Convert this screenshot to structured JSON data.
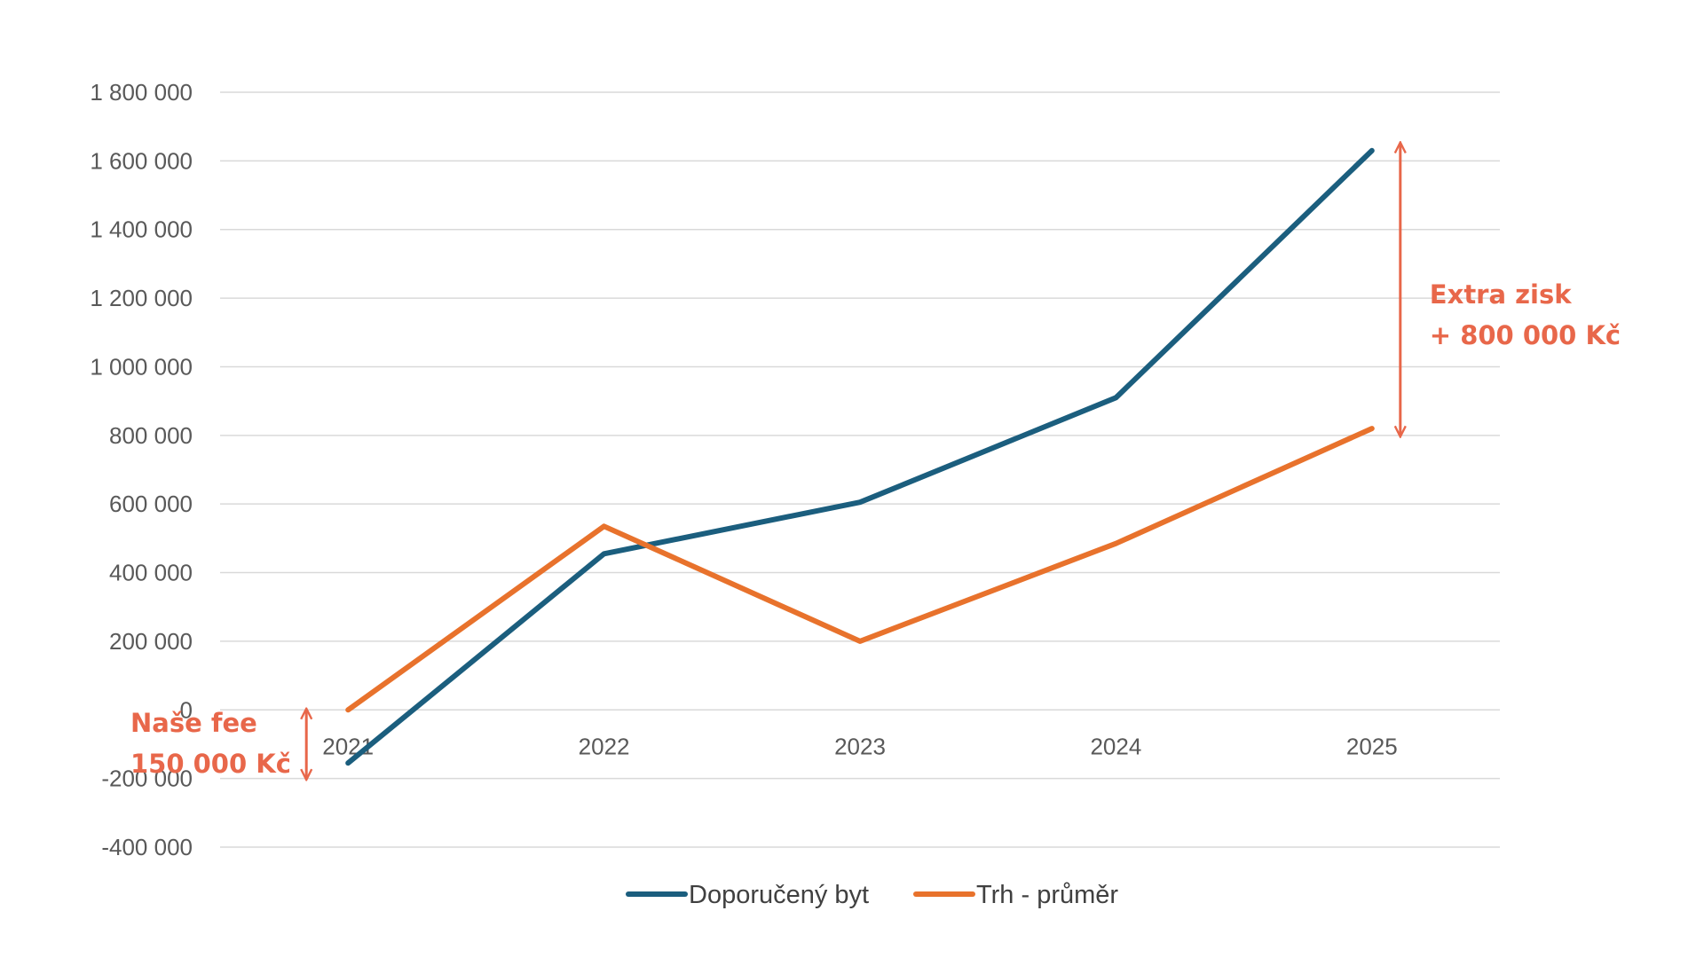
{
  "chart_data": {
    "type": "line",
    "categories": [
      "2021",
      "2022",
      "2023",
      "2024",
      "2025"
    ],
    "series": [
      {
        "name": "Doporučený byt",
        "values": [
          -155000,
          455000,
          605000,
          910000,
          1630000
        ],
        "color": "#1B5E7E"
      },
      {
        "name": "Trh - průměr",
        "values": [
          0,
          535000,
          200000,
          485000,
          820000
        ],
        "color": "#E8722C"
      }
    ],
    "y_ticks": [
      {
        "value": 1800000,
        "label": "1 800 000"
      },
      {
        "value": 1600000,
        "label": "1 600 000"
      },
      {
        "value": 1400000,
        "label": "1 400 000"
      },
      {
        "value": 1200000,
        "label": "1 200 000"
      },
      {
        "value": 1000000,
        "label": "1 000 000"
      },
      {
        "value": 800000,
        "label": "800 000"
      },
      {
        "value": 600000,
        "label": "600 000"
      },
      {
        "value": 400000,
        "label": "400 000"
      },
      {
        "value": 200000,
        "label": "200 000"
      },
      {
        "value": 0,
        "label": "0"
      },
      {
        "value": -200000,
        "label": "-200 000"
      },
      {
        "value": -400000,
        "label": "-400 000"
      }
    ],
    "ylim": [
      -400000,
      1800000
    ],
    "grid": true,
    "legend_position": "bottom",
    "annotations": [
      {
        "id": "fee",
        "lines": [
          "Naše fee",
          "150 000 Kč"
        ],
        "category": "2021",
        "from": -200000,
        "to": 0,
        "color": "#E8674A"
      },
      {
        "id": "extra",
        "lines": [
          "Extra zisk",
          "+ 800 000 Kč"
        ],
        "category": "2025",
        "from": 800000,
        "to": 1650000,
        "color": "#E8674A"
      }
    ]
  }
}
